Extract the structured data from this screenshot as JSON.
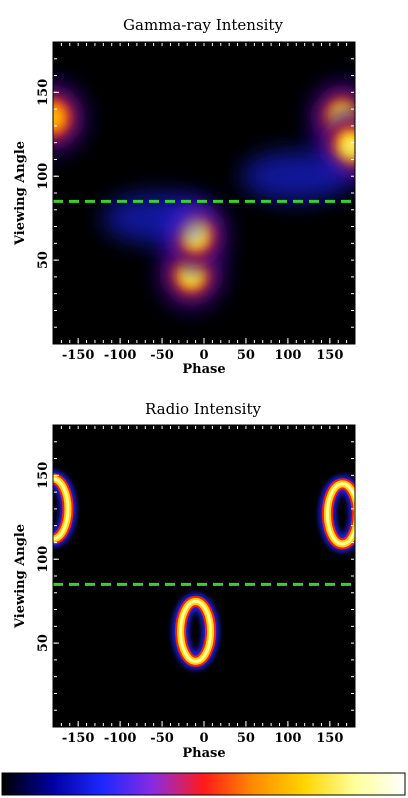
{
  "colors": {
    "background": "#ffffff",
    "axes": "#000000",
    "line_of_sight": "#3ccf2c",
    "colormap": [
      "#000000",
      "#0000a0",
      "#1e28ff",
      "#8a2be2",
      "#ff1a1a",
      "#ff8c00",
      "#ffd400",
      "#ffff99",
      "#ffffff"
    ]
  },
  "chart_data": [
    {
      "type": "heatmap",
      "title": "Gamma-ray Intensity",
      "xlabel": "Phase",
      "ylabel": "Viewing Angle",
      "xlim": [
        -180,
        180
      ],
      "ylim": [
        0,
        180
      ],
      "xticks": [
        -150,
        -100,
        -50,
        0,
        50,
        100,
        150
      ],
      "yticks": [
        50,
        100,
        150
      ],
      "reference_line": {
        "y": 85,
        "style": "dashed"
      },
      "features": [
        {
          "shape": "blob",
          "phase": -15,
          "angle": 42,
          "peak": 0.82
        },
        {
          "shape": "blob",
          "phase": -10,
          "angle": 65,
          "peak": 0.9
        },
        {
          "shape": "blob",
          "phase": 165,
          "angle": 135,
          "peak": 0.85
        },
        {
          "shape": "blob",
          "phase": 175,
          "angle": 118,
          "peak": 0.92
        },
        {
          "shape": "blob",
          "phase": -180,
          "angle": 135,
          "peak": 0.75
        },
        {
          "shape": "diffuse",
          "phase": -55,
          "angle": 75,
          "peak": 0.3
        },
        {
          "shape": "diffuse",
          "phase": 110,
          "angle": 100,
          "peak": 0.3
        }
      ]
    },
    {
      "type": "heatmap",
      "title": "Radio Intensity",
      "xlabel": "Phase",
      "ylabel": "Viewing Angle",
      "xlim": [
        -180,
        180
      ],
      "ylim": [
        0,
        180
      ],
      "xticks": [
        -150,
        -100,
        -50,
        0,
        50,
        100,
        150
      ],
      "yticks": [
        50,
        100,
        150
      ],
      "reference_line": {
        "y": 85,
        "style": "dashed"
      },
      "features": [
        {
          "shape": "ring",
          "phase": -10,
          "angle": 57,
          "peak": 0.9
        },
        {
          "shape": "ring",
          "phase": 165,
          "angle": 127,
          "peak": 0.9
        },
        {
          "shape": "ring",
          "phase": -180,
          "angle": 130,
          "peak": 0.9
        }
      ]
    }
  ]
}
